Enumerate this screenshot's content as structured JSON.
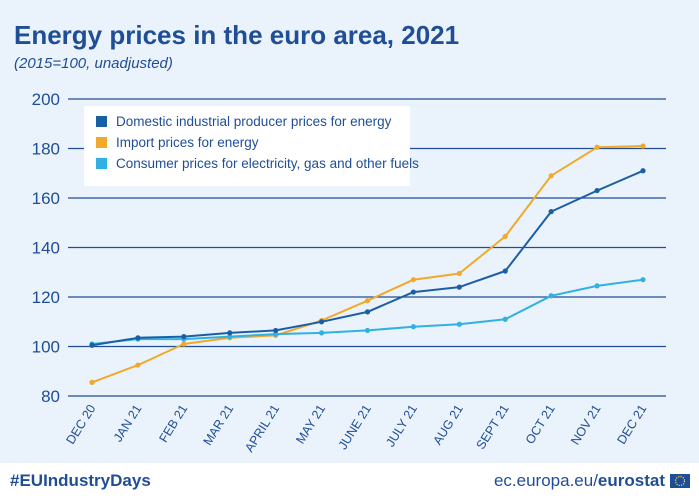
{
  "footer": {
    "hashtag": "#EUIndustryDays",
    "site_prefix": "ec.europa.eu/",
    "site_brand": "eurostat"
  },
  "chart_data": {
    "type": "line",
    "title": "Energy prices in the euro area, 2021",
    "subtitle": "(2015=100, unadjusted)",
    "xlabel": "",
    "ylabel": "",
    "categories": [
      "DEC 20",
      "JAN 21",
      "FEB 21",
      "MAR 21",
      "APRIL 21",
      "MAY 21",
      "JUNE 21",
      "JULY 21",
      "AUG 21",
      "SEPT 21",
      "OCT 21",
      "NOV 21",
      "DEC 21"
    ],
    "ylim": [
      80,
      200
    ],
    "yticks": [
      80,
      100,
      120,
      140,
      160,
      180,
      200
    ],
    "grid": true,
    "legend_position": "top-left",
    "series": [
      {
        "name": "Domestic industrial producer prices for energy",
        "color": "#1a5fa6",
        "values": [
          100.5,
          103.5,
          104,
          105.5,
          106.5,
          110,
          114,
          122,
          124,
          130.5,
          154.5,
          163,
          171
        ]
      },
      {
        "name": "Import prices for energy",
        "color": "#f2a92a",
        "values": [
          85.5,
          92.5,
          101,
          103.5,
          104.5,
          110.5,
          118.5,
          127,
          129.5,
          144.5,
          169,
          180.5,
          181
        ]
      },
      {
        "name": "Consumer prices for electricity, gas and other fuels",
        "color": "#2fb1e3",
        "values": [
          101,
          103,
          103,
          104,
          105,
          105.5,
          106.5,
          108,
          109,
          111,
          120.5,
          124.5,
          127
        ]
      }
    ]
  }
}
